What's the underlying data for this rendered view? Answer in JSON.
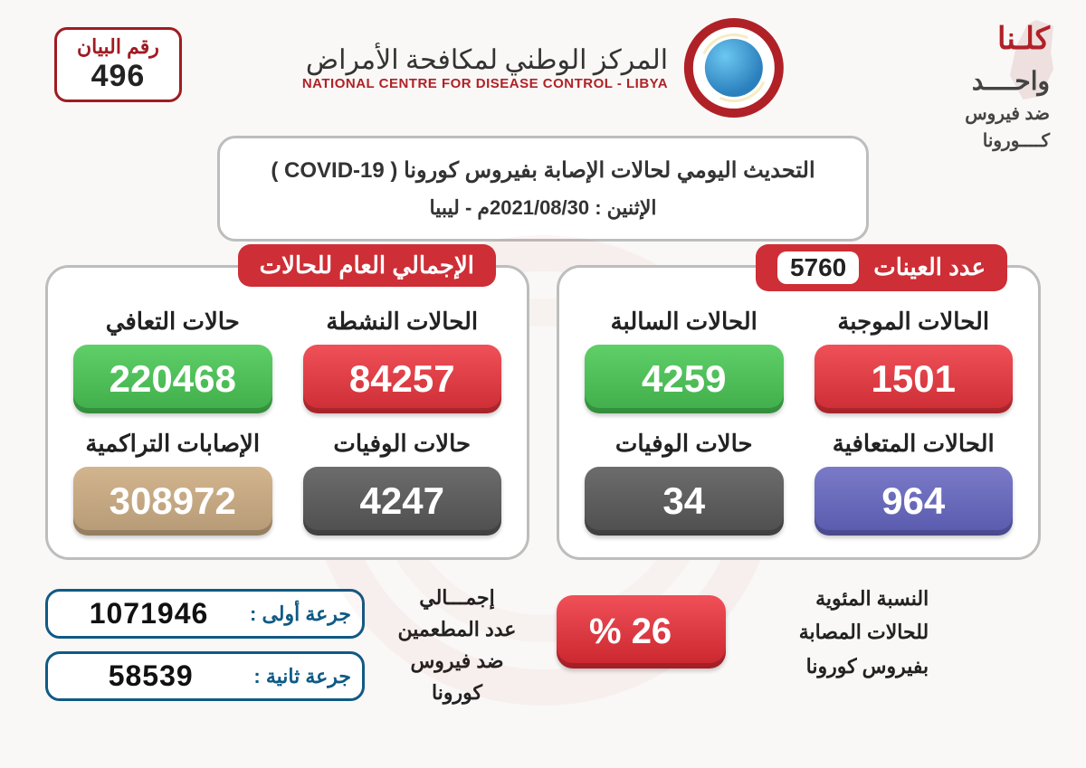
{
  "bulletin": {
    "label": "رقم البيان",
    "number": "496"
  },
  "org": {
    "arabic": "المركز الوطني لمكافحة الأمراض",
    "english": "NATIONAL CENTRE FOR DISEASE CONTROL - LIBYA"
  },
  "slogan": {
    "l1": "كلـنا",
    "l2a": "واحــــد",
    "l3": "ضد فيروس",
    "l4": "كــــورونا"
  },
  "subtitle": {
    "line1": "التحديث اليومي لحالات الإصابة بفيروس كورونا ( COVID-19 )",
    "line2": "الإثنين : 2021/08/30م - ليبيا"
  },
  "panels": {
    "samples": {
      "title": "عدد العينات",
      "count": "5760",
      "stats": [
        {
          "label": "الحالات الموجبة",
          "value": "1501",
          "color": "c-red"
        },
        {
          "label": "الحالات السالبة",
          "value": "4259",
          "color": "c-green"
        },
        {
          "label": "الحالات المتعافية",
          "value": "964",
          "color": "c-purple"
        },
        {
          "label": "حالات الوفيات",
          "value": "34",
          "color": "c-gray"
        }
      ]
    },
    "totals": {
      "title": "الإجمالي العام للحالات",
      "stats": [
        {
          "label": "الحالات النشطة",
          "value": "84257",
          "color": "c-red"
        },
        {
          "label": "حالات التعافي",
          "value": "220468",
          "color": "c-green"
        },
        {
          "label": "حالات الوفيات",
          "value": "4247",
          "color": "c-gray"
        },
        {
          "label": "الإصابات التراكمية",
          "value": "308972",
          "color": "c-tan"
        }
      ]
    }
  },
  "vaccination": {
    "label": "إجمـــالي\nعدد المطعمين\nضد فيروس كورونا",
    "dose1_label": "جرعة أولى :",
    "dose1_value": "1071946",
    "dose2_label": "جرعة ثانية :",
    "dose2_value": "58539"
  },
  "percentage": {
    "label": "النسبة المئوية\nللحالات المصابة\nبفيروس كورونا",
    "value": "26  %"
  },
  "colors": {
    "brand_red": "#b02127",
    "pill_red1": "#f05058",
    "pill_red2": "#cc2c33",
    "green1": "#5fcf68",
    "green2": "#3fae4a",
    "gray1": "#6c6c6c",
    "gray2": "#4e4e4e",
    "purple1": "#7a7ac7",
    "purple2": "#595aae",
    "tan1": "#d2b58e",
    "tan2": "#b69a76",
    "border_blue": "#105a84",
    "panel_border": "#bdbdbd",
    "page_bg": "#f9f8f6"
  }
}
